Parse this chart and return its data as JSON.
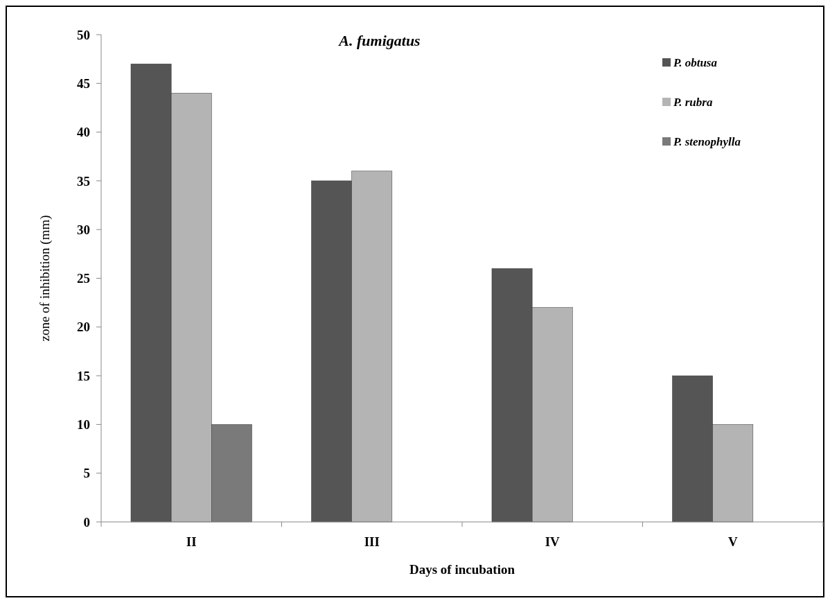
{
  "chart_data": {
    "type": "bar",
    "title": "A. fumigatus",
    "xlabel": "Days of incubation",
    "ylabel": "zone of inhibition (mm)",
    "categories": [
      "II",
      "III",
      "IV",
      "V"
    ],
    "series": [
      {
        "name": "P. obtusa",
        "color": "#555555",
        "values": [
          47,
          35,
          26,
          15
        ]
      },
      {
        "name": "P. rubra",
        "color": "#b4b4b4",
        "values": [
          44,
          36,
          22,
          10
        ]
      },
      {
        "name": "P. stenophylla",
        "color": "#7a7a7a",
        "values": [
          10,
          null,
          null,
          null
        ]
      }
    ],
    "ylim": [
      0,
      50
    ],
    "yticks": [
      0,
      5,
      10,
      15,
      20,
      25,
      30,
      35,
      40,
      45,
      50
    ],
    "grid": false,
    "legend": "top right"
  }
}
